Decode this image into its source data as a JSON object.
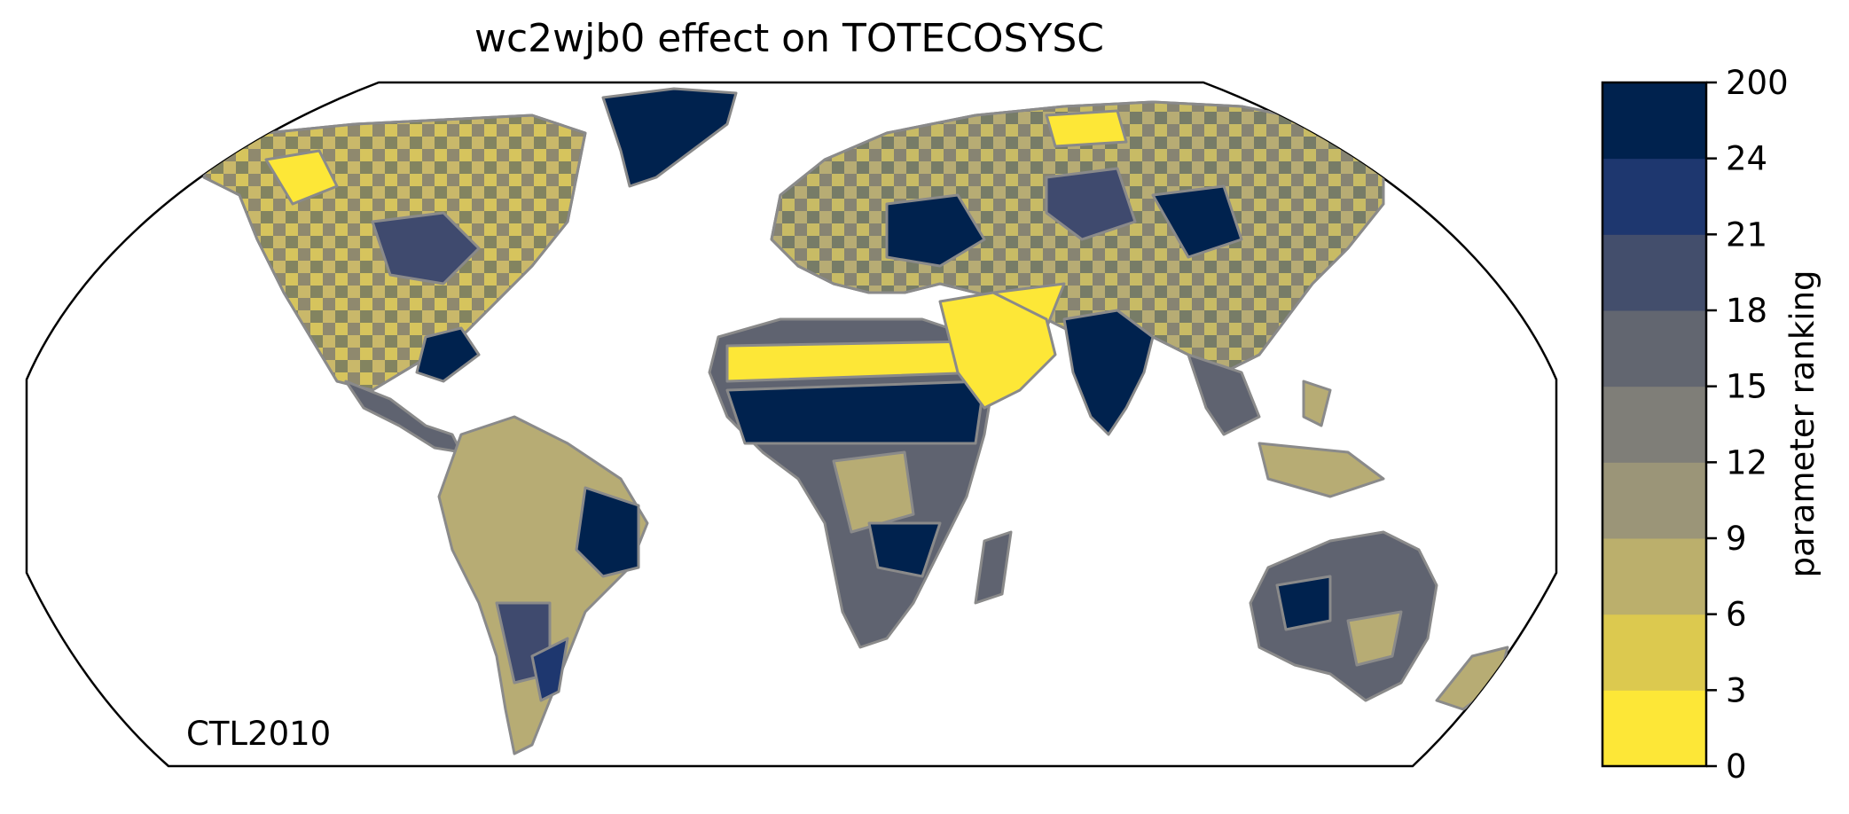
{
  "map": {
    "title": "wc2wjb0 effect on TOTECOSYSC",
    "run_label": "CTL2010",
    "projection": "Robinson",
    "ocean_color": "#ffffff",
    "coastline_color": "#8a8a8a",
    "frame_color": "#000000",
    "regions": [
      {
        "name": "North America",
        "dominant_rank_class": "0-9",
        "color": "#c9b86a"
      },
      {
        "name": "Greenland",
        "dominant_rank_class": "24-200",
        "color": "#00224e"
      },
      {
        "name": "South America",
        "dominant_rank_class": "6-12",
        "color": "#b7ac74"
      },
      {
        "name": "Sahara",
        "dominant_rank_class": "24-200",
        "color": "#00224e"
      },
      {
        "name": "Arabia",
        "dominant_rank_class": "0-6",
        "color": "#fde737"
      },
      {
        "name": "India",
        "dominant_rank_class": "24-200",
        "color": "#00224e"
      },
      {
        "name": "Eurasia",
        "dominant_rank_class": "6-15",
        "color": "#b7ac74"
      },
      {
        "name": "Southern Africa",
        "dominant_rank_class": "12-200",
        "color": "#3f4a6e"
      },
      {
        "name": "Australia",
        "dominant_rank_class": "12-24",
        "color": "#5f6370"
      }
    ]
  },
  "colorbar": {
    "label": "parameter ranking",
    "ticks": [
      "0",
      "3",
      "6",
      "9",
      "12",
      "15",
      "18",
      "21",
      "24",
      "200"
    ],
    "colors": [
      "#fde737",
      "#dcc94f",
      "#bbaf6c",
      "#9b9578",
      "#7f7e78",
      "#626670",
      "#434e6c",
      "#1e376f",
      "#00224e"
    ]
  }
}
